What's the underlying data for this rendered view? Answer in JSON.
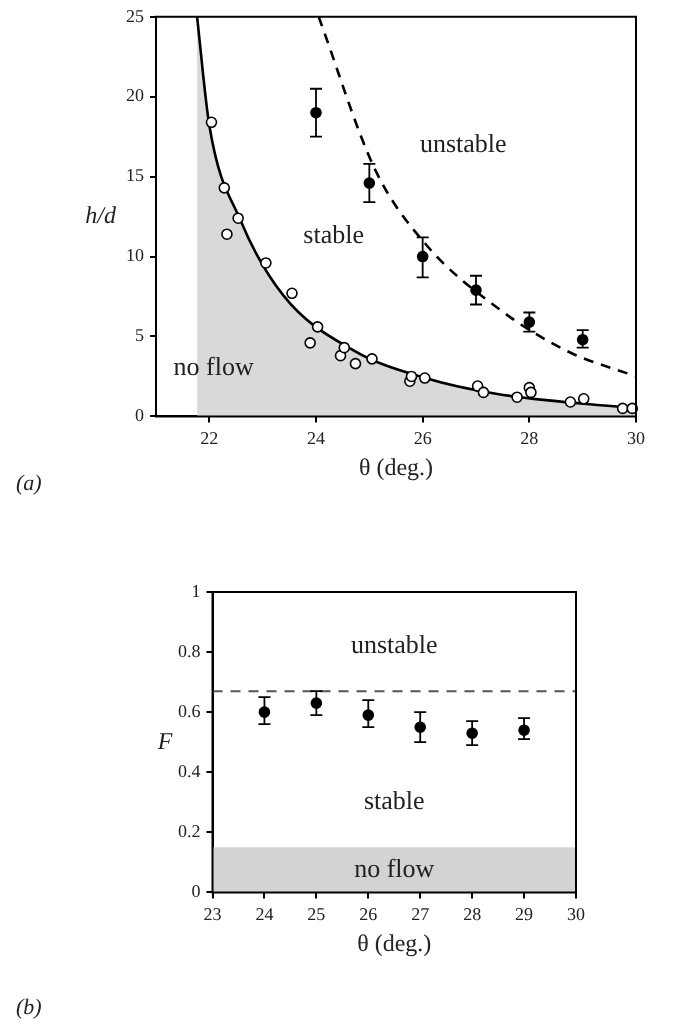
{
  "chart_data": [
    {
      "type": "scatter",
      "xlabel": "θ (deg.)",
      "ylabel": "h/d",
      "xlim": [
        21,
        30
      ],
      "ylim": [
        0,
        25
      ],
      "xticks": [
        22,
        24,
        26,
        28,
        30
      ],
      "yticks": [
        0,
        5,
        10,
        15,
        20,
        25
      ],
      "grid": false,
      "legend": false,
      "series": [
        {
          "type": "area",
          "color": "#000000",
          "marker": "none",
          "line_style": "solid",
          "x": [
            21.77,
            22,
            22.58,
            23.38,
            24.72,
            26.05,
            27.4,
            30
          ],
          "values": [
            25,
            18.2,
            12.3,
            7.6,
            4.1,
            2.4,
            1.4,
            0.5
          ]
        },
        {
          "type": "line",
          "color": "#000000",
          "marker": "none",
          "line_style": "dashed",
          "x": [
            24.05,
            25.1,
            26.05,
            27.4,
            28.7,
            30
          ],
          "values": [
            25,
            15.5,
            10.8,
            6.8,
            4.1,
            2.5
          ]
        },
        {
          "color": "#ffffff",
          "marker": "circle",
          "x": [
            22.04,
            22.28,
            22.33,
            22.54,
            23.06,
            23.55,
            23.89,
            24.03,
            24.46,
            24.53,
            24.74,
            25.05,
            25.76,
            25.79,
            26.04,
            27.03,
            27.14,
            27.77,
            28.0,
            28.03,
            28.77,
            29.02,
            29.75,
            29.93
          ],
          "values": [
            18.4,
            14.3,
            11.4,
            12.4,
            9.6,
            7.7,
            4.6,
            5.6,
            3.8,
            4.3,
            3.3,
            3.6,
            2.2,
            2.5,
            2.4,
            1.9,
            1.5,
            1.2,
            1.8,
            1.5,
            0.9,
            1.1,
            0.5,
            0.5
          ]
        },
        {
          "color": "#000000",
          "marker": "circle",
          "x": [
            24,
            25,
            26,
            27,
            28,
            29
          ],
          "values": [
            19.0,
            14.6,
            10.0,
            7.9,
            5.9,
            4.8
          ],
          "errors": [
            [
              17.5,
              20.5
            ],
            [
              13.4,
              15.8
            ],
            [
              8.7,
              11.2
            ],
            [
              7.0,
              8.8
            ],
            [
              5.3,
              6.5
            ],
            [
              4.3,
              5.4
            ]
          ]
        }
      ],
      "annotations": [
        "unstable",
        "stable",
        "no flow",
        "(a)"
      ]
    },
    {
      "type": "scatter",
      "xlabel": "θ (deg.)",
      "ylabel": "F",
      "xlim": [
        23,
        30
      ],
      "ylim": [
        0,
        1
      ],
      "xticks": [
        23,
        24,
        25,
        26,
        27,
        28,
        29,
        30
      ],
      "yticks": [
        0,
        0.2,
        0.4,
        0.6,
        0.8,
        1
      ],
      "grid": false,
      "legend": false,
      "series": [
        {
          "color": "#000000",
          "marker": "circle",
          "x": [
            24,
            25,
            26,
            27,
            28,
            29
          ],
          "values": [
            0.6,
            0.63,
            0.59,
            0.55,
            0.53,
            0.54
          ],
          "errors": [
            [
              0.56,
              0.65
            ],
            [
              0.59,
              0.67
            ],
            [
              0.55,
              0.64
            ],
            [
              0.5,
              0.6
            ],
            [
              0.49,
              0.57
            ],
            [
              0.51,
              0.58
            ]
          ]
        }
      ],
      "ref_lines": [
        {
          "axis": "y",
          "value": 0.67,
          "line_style": "dashed",
          "color": "#555555"
        }
      ],
      "bands": [
        {
          "axis": "y",
          "from": 0,
          "to": 0.15,
          "label": "no flow",
          "color": "#d3d3d3"
        }
      ],
      "annotations": [
        "unstable",
        "stable",
        "(b)"
      ]
    }
  ]
}
